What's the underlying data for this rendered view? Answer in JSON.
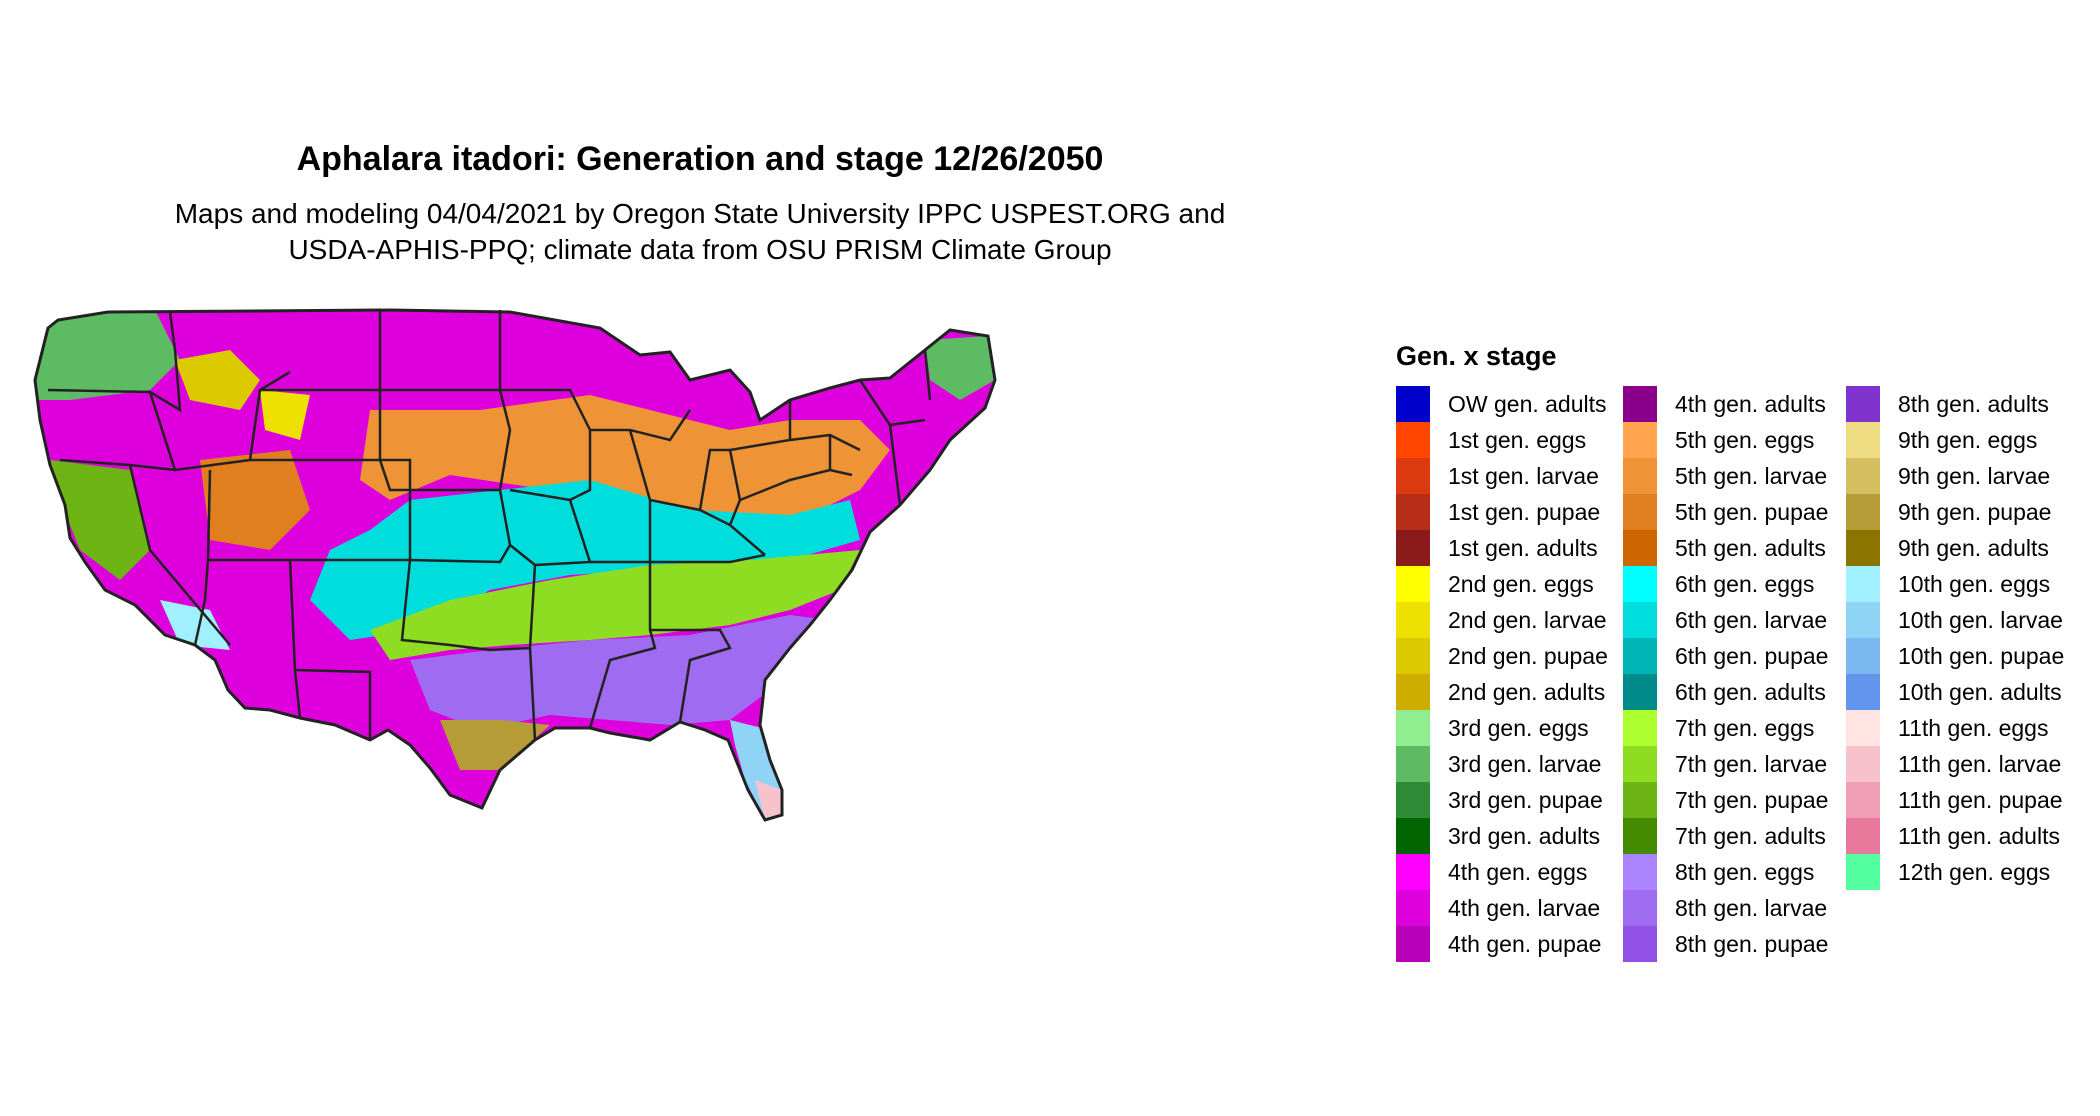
{
  "title": "Aphalara itadori: Generation and stage 12/26/2050",
  "subtitle_line1": "Maps and modeling 04/04/2021 by Oregon State University IPPC USPEST.ORG and",
  "subtitle_line2": "USDA-APHIS-PPQ; climate data from OSU PRISM Climate Group",
  "legend": {
    "title": "Gen. x stage",
    "columns": [
      [
        {
          "label": "OW gen. adults",
          "color": "#0000CD"
        },
        {
          "label": "1st gen. eggs",
          "color": "#FF4500"
        },
        {
          "label": "1st gen. larvae",
          "color": "#DD3A12"
        },
        {
          "label": "1st gen. pupae",
          "color": "#B82E18"
        },
        {
          "label": "1st gen. adults",
          "color": "#8B1A1A"
        },
        {
          "label": "2nd gen. eggs",
          "color": "#FFFF00"
        },
        {
          "label": "2nd gen. larvae",
          "color": "#EEE000"
        },
        {
          "label": "2nd gen. pupae",
          "color": "#DDC900"
        },
        {
          "label": "2nd gen. adults",
          "color": "#CDAD00"
        },
        {
          "label": "3rd gen. eggs",
          "color": "#90EE90"
        },
        {
          "label": "3rd gen. larvae",
          "color": "#5DBB63"
        },
        {
          "label": "3rd gen. pupae",
          "color": "#2E8B35"
        },
        {
          "label": "3rd gen. adults",
          "color": "#006400"
        },
        {
          "label": "4th gen. eggs",
          "color": "#FF00FF"
        },
        {
          "label": "4th gen. larvae",
          "color": "#DD00DD"
        },
        {
          "label": "4th gen. pupae",
          "color": "#B800B8"
        }
      ],
      [
        {
          "label": "4th gen. adults",
          "color": "#8B008B"
        },
        {
          "label": "5th gen. eggs",
          "color": "#FFA54F"
        },
        {
          "label": "5th gen. larvae",
          "color": "#EE9436"
        },
        {
          "label": "5th gen. pupae",
          "color": "#E07F1F"
        },
        {
          "label": "5th gen. adults",
          "color": "#CD6600"
        },
        {
          "label": "6th gen. eggs",
          "color": "#00FFFF"
        },
        {
          "label": "6th gen. larvae",
          "color": "#00DDDD"
        },
        {
          "label": "6th gen. pupae",
          "color": "#00B5B5"
        },
        {
          "label": "6th gen. adults",
          "color": "#008B8B"
        },
        {
          "label": "7th gen. eggs",
          "color": "#ADFF2F"
        },
        {
          "label": "7th gen. larvae",
          "color": "#8FDD22"
        },
        {
          "label": "7th gen. pupae",
          "color": "#6DB514"
        },
        {
          "label": "7th gen. adults",
          "color": "#458B00"
        },
        {
          "label": "8th gen. eggs",
          "color": "#AB82FF"
        },
        {
          "label": "8th gen. larvae",
          "color": "#9F6BF0"
        },
        {
          "label": "8th gen. pupae",
          "color": "#9150E6"
        }
      ],
      [
        {
          "label": "8th gen. adults",
          "color": "#8032CC"
        },
        {
          "label": "9th gen. eggs",
          "color": "#EEDC82"
        },
        {
          "label": "9th gen. larvae",
          "color": "#D4BE60"
        },
        {
          "label": "9th gen. pupae",
          "color": "#B59C36"
        },
        {
          "label": "9th gen. adults",
          "color": "#8B7500"
        },
        {
          "label": "10th gen. eggs",
          "color": "#A0F0FF"
        },
        {
          "label": "10th gen. larvae",
          "color": "#8FD4F5"
        },
        {
          "label": "10th gen. pupae",
          "color": "#7CB8F0"
        },
        {
          "label": "10th gen. adults",
          "color": "#6495ED"
        },
        {
          "label": "11th gen. eggs",
          "color": "#FFE4E1"
        },
        {
          "label": "11th gen. larvae",
          "color": "#F8C2CC"
        },
        {
          "label": "11th gen. pupae",
          "color": "#F09EB5"
        },
        {
          "label": "11th gen. adults",
          "color": "#E8789C"
        },
        {
          "label": "12th gen. eggs",
          "color": "#54FF9F"
        }
      ]
    ]
  }
}
